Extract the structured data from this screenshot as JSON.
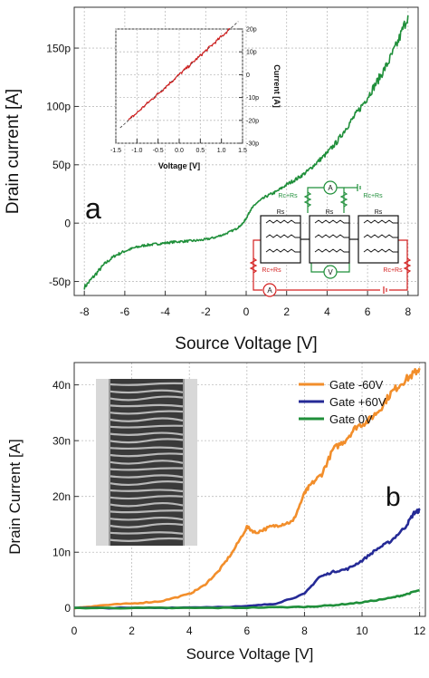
{
  "chart_data": [
    {
      "type": "line",
      "panel_label": "a",
      "xlabel": "Source Voltage [V]",
      "ylabel": "Drain current [A]",
      "xlim": [
        -8.5,
        8.5
      ],
      "ylim": [
        -62,
        185
      ],
      "x_ticks": [
        -8,
        -6,
        -4,
        -2,
        0,
        2,
        4,
        6,
        8
      ],
      "x_tick_labels": [
        "-8",
        "-6",
        "-4",
        "-2",
        "0",
        "2",
        "4",
        "6",
        "8"
      ],
      "y_ticks": [
        -50,
        0,
        50,
        100,
        150
      ],
      "y_tick_labels": [
        "-50p",
        "0",
        "50p",
        "100p",
        "150p"
      ],
      "grid": true,
      "series": [
        {
          "color": "#1f8f3a",
          "x": [
            -8,
            -7.5,
            -7,
            -6.5,
            -6,
            -5.5,
            -5,
            -4.5,
            -4,
            -3.5,
            -3,
            -2.5,
            -2,
            -1.5,
            -1,
            -0.5,
            -0.2,
            0,
            0.2,
            0.5,
            1,
            1.5,
            2,
            2.5,
            3,
            3.5,
            4,
            4.5,
            5,
            5.5,
            6,
            6.5,
            7,
            7.5,
            8
          ],
          "y": [
            -55,
            -45,
            -35,
            -28,
            -24,
            -21,
            -19,
            -18,
            -17,
            -16,
            -15.5,
            -15,
            -14,
            -12,
            -9,
            -5,
            -1,
            4,
            11,
            17,
            23,
            27,
            33,
            38,
            44,
            52,
            60,
            70,
            83,
            95,
            108,
            122,
            137,
            155,
            178
          ]
        }
      ],
      "inset": {
        "type": "line",
        "xlabel": "Voltage [V]",
        "ylabel": "Current [A]",
        "xlim": [
          -1.5,
          1.5
        ],
        "ylim": [
          -30,
          20
        ],
        "x_ticks": [
          -1.5,
          -1.0,
          -0.5,
          0.0,
          0.5,
          1.0,
          1.5
        ],
        "x_tick_labels": [
          "-1.5",
          "-1.0",
          "-0.5",
          "0.0",
          "0.5",
          "1.0",
          "1.5"
        ],
        "y_ticks": [
          20,
          10,
          0,
          -10,
          -20,
          -30
        ],
        "y_tick_labels": [
          "20p",
          "10p",
          "0",
          "-10p",
          "-20p",
          "-30p"
        ],
        "series": [
          {
            "color": "#d42020",
            "x": [
              -1.2,
              -1.0,
              -0.8,
              -0.6,
              -0.4,
              -0.2,
              0,
              0.2,
              0.4,
              0.6,
              0.8,
              1.0,
              1.2
            ],
            "y": [
              -20,
              -16.7,
              -13.3,
              -10.0,
              -6.7,
              -3.3,
              0,
              3.3,
              6.7,
              10.0,
              13.3,
              16.7,
              20
            ]
          }
        ],
        "fit_line": {
          "style": "dashed",
          "color": "#333333",
          "x": [
            -1.4,
            1.4
          ],
          "y": [
            -23.3,
            23.3
          ]
        }
      },
      "circuit": {
        "labels": [
          "Rc+Rs",
          "Rc+Rs",
          "Rc+Rs",
          "Rc+Rs",
          "Rs",
          "Rs",
          "Rs"
        ],
        "meters": [
          "A",
          "V",
          "A"
        ],
        "wire_colors": {
          "outer": "#d42020",
          "inner": "#1f8f3a"
        }
      }
    },
    {
      "type": "line",
      "panel_label": "b",
      "xlabel": "Source Voltage [V]",
      "ylabel": "Drain Current [A]",
      "xlim": [
        0,
        12.2
      ],
      "ylim": [
        -1.5,
        44
      ],
      "x_ticks": [
        0,
        2,
        4,
        6,
        8,
        10,
        12
      ],
      "x_tick_labels": [
        "0",
        "2",
        "4",
        "6",
        "8",
        "10",
        "12"
      ],
      "y_ticks": [
        0,
        10,
        20,
        30,
        40
      ],
      "y_tick_labels": [
        "0",
        "10n",
        "20n",
        "30n",
        "40n"
      ],
      "grid": true,
      "legend_position": "top-right",
      "series": [
        {
          "name": "Gate -60V",
          "color": "#f28e2b",
          "x": [
            0,
            1,
            2,
            3,
            4,
            4.5,
            5,
            5.5,
            6,
            6.3,
            6.8,
            7.2,
            7.6,
            8,
            8.2,
            8.6,
            9,
            9.4,
            9.8,
            10.2,
            10.6,
            11,
            11.4,
            11.8,
            12
          ],
          "y": [
            0,
            0.5,
            0.8,
            1.2,
            2.5,
            4,
            6.5,
            10,
            14.5,
            13.5,
            14.5,
            15,
            15.5,
            20.5,
            22,
            24,
            28.5,
            30,
            32.5,
            33.5,
            35.5,
            38.5,
            40.5,
            42,
            43
          ]
        },
        {
          "name": "Gate +60V",
          "color": "#252a96",
          "x": [
            0,
            2,
            4,
            6,
            7,
            8,
            8.5,
            9,
            9.5,
            10,
            10.5,
            11,
            11.5,
            11.8,
            12
          ],
          "y": [
            0,
            0,
            0.1,
            0.3,
            0.8,
            2.5,
            5.5,
            6.5,
            7,
            8.5,
            10.5,
            12,
            14.5,
            17,
            17.5
          ]
        },
        {
          "name": "Gate 0V",
          "color": "#1f8f3a",
          "x": [
            0,
            2,
            4,
            6,
            8,
            9,
            10,
            11,
            11.5,
            12
          ],
          "y": [
            0,
            0,
            0,
            0.05,
            0.2,
            0.5,
            1,
            1.8,
            2.4,
            3.2
          ]
        }
      ]
    }
  ]
}
